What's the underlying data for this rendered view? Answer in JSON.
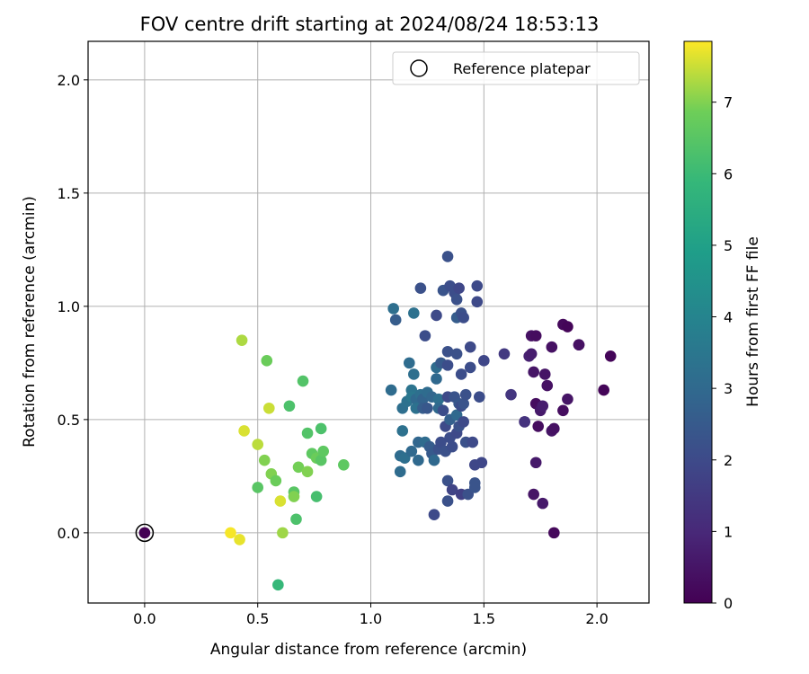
{
  "chart_data": {
    "type": "scatter",
    "title": "FOV centre drift starting at 2024/08/24 18:53:13",
    "xlabel": "Angular distance from reference (arcmin)",
    "ylabel": "Rotation from reference (arcmin)",
    "xlim": [
      -0.25,
      2.23
    ],
    "ylim": [
      -0.31,
      2.17
    ],
    "xticks": [
      "0.0",
      "0.5",
      "1.0",
      "1.5",
      "2.0"
    ],
    "yticks": [
      "0.0",
      "0.5",
      "1.0",
      "1.5",
      "2.0"
    ],
    "grid": true,
    "legend": {
      "location": "top-right",
      "entries": [
        "Reference platepar"
      ]
    },
    "reference_point": {
      "x": 0.0,
      "y": 0.0
    },
    "colorbar": {
      "label": "Hours from first FF file",
      "colormap": "viridis",
      "range": [
        0,
        7.85
      ],
      "ticks": [
        "0",
        "1",
        "2",
        "3",
        "4",
        "5",
        "6",
        "7"
      ]
    },
    "points": [
      {
        "x": 0.0,
        "y": 0.0,
        "c": 0.0
      },
      {
        "x": 0.43,
        "y": 0.85,
        "c": 7.3
      },
      {
        "x": 0.44,
        "y": 0.45,
        "c": 7.6
      },
      {
        "x": 0.38,
        "y": 0.0,
        "c": 7.8
      },
      {
        "x": 0.42,
        "y": -0.03,
        "c": 7.7
      },
      {
        "x": 0.5,
        "y": 0.39,
        "c": 7.4
      },
      {
        "x": 0.53,
        "y": 0.32,
        "c": 7.0
      },
      {
        "x": 0.55,
        "y": 0.55,
        "c": 7.5
      },
      {
        "x": 0.54,
        "y": 0.76,
        "c": 6.8
      },
      {
        "x": 0.56,
        "y": 0.26,
        "c": 7.0
      },
      {
        "x": 0.58,
        "y": 0.23,
        "c": 6.8
      },
      {
        "x": 0.6,
        "y": 0.14,
        "c": 7.6
      },
      {
        "x": 0.61,
        "y": 0.0,
        "c": 7.2
      },
      {
        "x": 0.5,
        "y": 0.2,
        "c": 6.5
      },
      {
        "x": 0.59,
        "y": -0.23,
        "c": 5.9
      },
      {
        "x": 0.64,
        "y": 0.56,
        "c": 6.3
      },
      {
        "x": 0.66,
        "y": 0.18,
        "c": 6.5
      },
      {
        "x": 0.66,
        "y": 0.16,
        "c": 7.0
      },
      {
        "x": 0.68,
        "y": 0.29,
        "c": 6.9
      },
      {
        "x": 0.67,
        "y": 0.06,
        "c": 6.3
      },
      {
        "x": 0.7,
        "y": 0.67,
        "c": 6.4
      },
      {
        "x": 0.72,
        "y": 0.44,
        "c": 6.4
      },
      {
        "x": 0.72,
        "y": 0.27,
        "c": 7.0
      },
      {
        "x": 0.74,
        "y": 0.35,
        "c": 6.6
      },
      {
        "x": 0.76,
        "y": 0.33,
        "c": 6.8
      },
      {
        "x": 0.76,
        "y": 0.16,
        "c": 6.2
      },
      {
        "x": 0.78,
        "y": 0.46,
        "c": 6.3
      },
      {
        "x": 0.78,
        "y": 0.32,
        "c": 6.5
      },
      {
        "x": 0.79,
        "y": 0.36,
        "c": 6.6
      },
      {
        "x": 0.88,
        "y": 0.3,
        "c": 6.6
      },
      {
        "x": 1.1,
        "y": 0.99,
        "c": 3.2
      },
      {
        "x": 1.11,
        "y": 0.94,
        "c": 2.6
      },
      {
        "x": 1.09,
        "y": 0.63,
        "c": 3.1
      },
      {
        "x": 1.13,
        "y": 0.34,
        "c": 3.1
      },
      {
        "x": 1.13,
        "y": 0.27,
        "c": 3.1
      },
      {
        "x": 1.14,
        "y": 0.55,
        "c": 3.2
      },
      {
        "x": 1.14,
        "y": 0.45,
        "c": 3.3
      },
      {
        "x": 1.15,
        "y": 0.33,
        "c": 3.2
      },
      {
        "x": 1.16,
        "y": 0.58,
        "c": 3.3
      },
      {
        "x": 1.17,
        "y": 0.75,
        "c": 3.1
      },
      {
        "x": 1.18,
        "y": 0.63,
        "c": 3.4
      },
      {
        "x": 1.18,
        "y": 0.6,
        "c": 3.5
      },
      {
        "x": 1.18,
        "y": 0.36,
        "c": 3.0
      },
      {
        "x": 1.19,
        "y": 0.97,
        "c": 3.3
      },
      {
        "x": 1.19,
        "y": 0.7,
        "c": 3.2
      },
      {
        "x": 1.2,
        "y": 0.59,
        "c": 3.0
      },
      {
        "x": 1.2,
        "y": 0.55,
        "c": 3.3
      },
      {
        "x": 1.21,
        "y": 0.4,
        "c": 2.9
      },
      {
        "x": 1.21,
        "y": 0.32,
        "c": 3.0
      },
      {
        "x": 1.22,
        "y": 1.08,
        "c": 2.2
      },
      {
        "x": 1.22,
        "y": 0.61,
        "c": 3.2
      },
      {
        "x": 1.23,
        "y": 0.59,
        "c": 2.8
      },
      {
        "x": 1.23,
        "y": 0.55,
        "c": 2.6
      },
      {
        "x": 1.24,
        "y": 0.87,
        "c": 2.1
      },
      {
        "x": 1.24,
        "y": 0.4,
        "c": 3.1
      },
      {
        "x": 1.25,
        "y": 0.62,
        "c": 3.1
      },
      {
        "x": 1.25,
        "y": 0.55,
        "c": 2.4
      },
      {
        "x": 1.26,
        "y": 0.38,
        "c": 2.6
      },
      {
        "x": 1.27,
        "y": 0.6,
        "c": 2.9
      },
      {
        "x": 1.27,
        "y": 0.35,
        "c": 2.5
      },
      {
        "x": 1.28,
        "y": 0.32,
        "c": 3.0
      },
      {
        "x": 1.28,
        "y": 0.08,
        "c": 2.0
      },
      {
        "x": 1.29,
        "y": 0.96,
        "c": 2.0
      },
      {
        "x": 1.29,
        "y": 0.73,
        "c": 3.1
      },
      {
        "x": 1.29,
        "y": 0.68,
        "c": 3.0
      },
      {
        "x": 1.3,
        "y": 0.59,
        "c": 3.2
      },
      {
        "x": 1.3,
        "y": 0.55,
        "c": 3.0
      },
      {
        "x": 1.3,
        "y": 0.37,
        "c": 2.2
      },
      {
        "x": 1.31,
        "y": 0.75,
        "c": 2.5
      },
      {
        "x": 1.31,
        "y": 0.4,
        "c": 2.1
      },
      {
        "x": 1.32,
        "y": 1.07,
        "c": 2.3
      },
      {
        "x": 1.32,
        "y": 0.54,
        "c": 2.1
      },
      {
        "x": 1.33,
        "y": 0.36,
        "c": 2.2
      },
      {
        "x": 1.33,
        "y": 0.47,
        "c": 2.0
      },
      {
        "x": 1.34,
        "y": 1.22,
        "c": 2.2
      },
      {
        "x": 1.34,
        "y": 0.8,
        "c": 2.2
      },
      {
        "x": 1.34,
        "y": 0.74,
        "c": 2.1
      },
      {
        "x": 1.34,
        "y": 0.6,
        "c": 2.0
      },
      {
        "x": 1.34,
        "y": 0.23,
        "c": 2.2
      },
      {
        "x": 1.34,
        "y": 0.14,
        "c": 2.2
      },
      {
        "x": 1.35,
        "y": 1.09,
        "c": 2.1
      },
      {
        "x": 1.35,
        "y": 0.5,
        "c": 2.7
      },
      {
        "x": 1.35,
        "y": 0.42,
        "c": 2.1
      },
      {
        "x": 1.36,
        "y": 0.38,
        "c": 2.1
      },
      {
        "x": 1.36,
        "y": 0.19,
        "c": 1.8
      },
      {
        "x": 1.37,
        "y": 1.06,
        "c": 2.1
      },
      {
        "x": 1.37,
        "y": 0.6,
        "c": 2.3
      },
      {
        "x": 1.38,
        "y": 1.03,
        "c": 2.2
      },
      {
        "x": 1.38,
        "y": 0.95,
        "c": 2.6
      },
      {
        "x": 1.38,
        "y": 0.79,
        "c": 2.2
      },
      {
        "x": 1.38,
        "y": 0.52,
        "c": 3.0
      },
      {
        "x": 1.38,
        "y": 0.44,
        "c": 2.0
      },
      {
        "x": 1.39,
        "y": 1.08,
        "c": 1.9
      },
      {
        "x": 1.39,
        "y": 0.57,
        "c": 2.4
      },
      {
        "x": 1.39,
        "y": 0.47,
        "c": 2.2
      },
      {
        "x": 1.4,
        "y": 0.97,
        "c": 2.2
      },
      {
        "x": 1.4,
        "y": 0.7,
        "c": 2.1
      },
      {
        "x": 1.4,
        "y": 0.56,
        "c": 2.1
      },
      {
        "x": 1.4,
        "y": 0.17,
        "c": 1.7
      },
      {
        "x": 1.41,
        "y": 0.95,
        "c": 2.1
      },
      {
        "x": 1.41,
        "y": 0.57,
        "c": 2.3
      },
      {
        "x": 1.41,
        "y": 0.49,
        "c": 2.0
      },
      {
        "x": 1.42,
        "y": 0.61,
        "c": 2.2
      },
      {
        "x": 1.42,
        "y": 0.4,
        "c": 2.2
      },
      {
        "x": 1.43,
        "y": 0.17,
        "c": 2.2
      },
      {
        "x": 1.44,
        "y": 0.82,
        "c": 2.0
      },
      {
        "x": 1.44,
        "y": 0.73,
        "c": 2.1
      },
      {
        "x": 1.45,
        "y": 0.4,
        "c": 2.0
      },
      {
        "x": 1.46,
        "y": 0.3,
        "c": 1.9
      },
      {
        "x": 1.46,
        "y": 0.2,
        "c": 2.3
      },
      {
        "x": 1.46,
        "y": 0.22,
        "c": 2.3
      },
      {
        "x": 1.47,
        "y": 1.09,
        "c": 2.0
      },
      {
        "x": 1.47,
        "y": 1.02,
        "c": 2.0
      },
      {
        "x": 1.48,
        "y": 0.6,
        "c": 2.1
      },
      {
        "x": 1.49,
        "y": 0.31,
        "c": 1.9
      },
      {
        "x": 1.5,
        "y": 0.76,
        "c": 1.9
      },
      {
        "x": 1.59,
        "y": 0.79,
        "c": 1.5
      },
      {
        "x": 1.62,
        "y": 0.61,
        "c": 1.4
      },
      {
        "x": 1.68,
        "y": 0.49,
        "c": 1.2
      },
      {
        "x": 1.68,
        "y": 0.49,
        "c": 1.3
      },
      {
        "x": 1.7,
        "y": 0.78,
        "c": 0.8
      },
      {
        "x": 1.71,
        "y": 0.87,
        "c": 0.4
      },
      {
        "x": 1.71,
        "y": 0.79,
        "c": 0.7
      },
      {
        "x": 1.72,
        "y": 0.71,
        "c": 0.5
      },
      {
        "x": 1.72,
        "y": 0.17,
        "c": 0.5
      },
      {
        "x": 1.73,
        "y": 0.87,
        "c": 0.3
      },
      {
        "x": 1.73,
        "y": 0.57,
        "c": 0.3
      },
      {
        "x": 1.73,
        "y": 0.31,
        "c": 0.6
      },
      {
        "x": 1.74,
        "y": 0.47,
        "c": 0.3
      },
      {
        "x": 1.75,
        "y": 0.54,
        "c": 0.6
      },
      {
        "x": 1.76,
        "y": 0.56,
        "c": 0.7
      },
      {
        "x": 1.76,
        "y": 0.13,
        "c": 0.6
      },
      {
        "x": 1.77,
        "y": 0.7,
        "c": 0.5
      },
      {
        "x": 1.78,
        "y": 0.65,
        "c": 0.4
      },
      {
        "x": 1.8,
        "y": 0.82,
        "c": 0.4
      },
      {
        "x": 1.8,
        "y": 0.45,
        "c": 0.5
      },
      {
        "x": 1.81,
        "y": 0.46,
        "c": 0.4
      },
      {
        "x": 1.81,
        "y": 0.0,
        "c": 0.2
      },
      {
        "x": 1.85,
        "y": 0.92,
        "c": 0.2
      },
      {
        "x": 1.85,
        "y": 0.54,
        "c": 0.3
      },
      {
        "x": 1.87,
        "y": 0.91,
        "c": 0.1
      },
      {
        "x": 1.87,
        "y": 0.59,
        "c": 0.5
      },
      {
        "x": 1.92,
        "y": 0.83,
        "c": 0.3
      },
      {
        "x": 1.92,
        "y": 0.83,
        "c": 0.4
      },
      {
        "x": 2.03,
        "y": 0.63,
        "c": 0.1
      },
      {
        "x": 2.06,
        "y": 0.78,
        "c": 0.1
      }
    ]
  }
}
